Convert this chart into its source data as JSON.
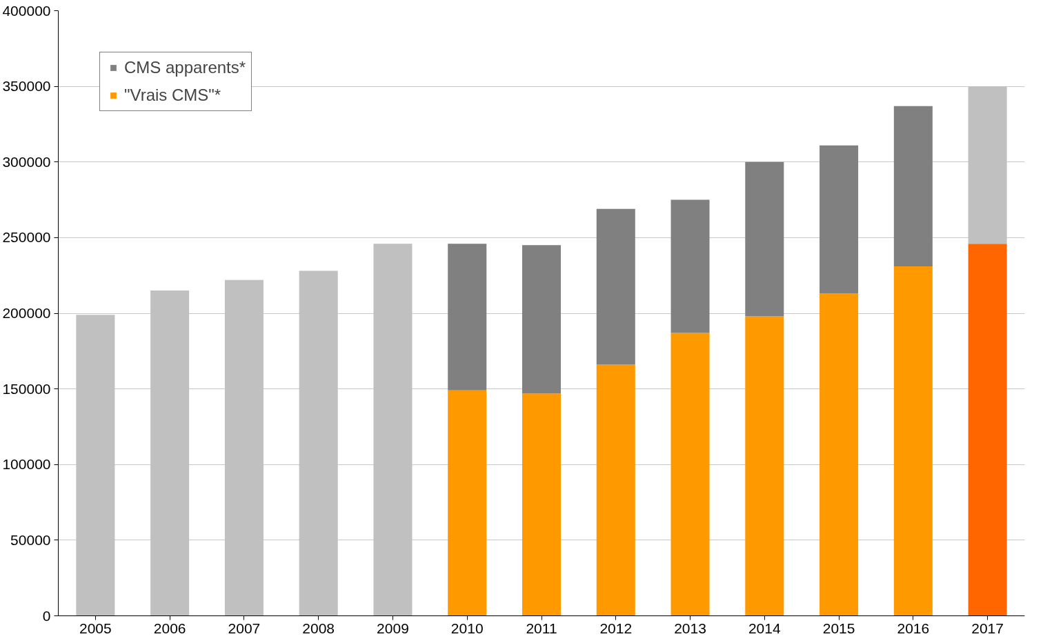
{
  "chart_data": {
    "type": "bar",
    "stacked": true,
    "categories": [
      "2005",
      "2006",
      "2007",
      "2008",
      "2009",
      "2010",
      "2011",
      "2012",
      "2013",
      "2014",
      "2015",
      "2016",
      "2017"
    ],
    "series": [
      {
        "name": "\"Vrais CMS\"*",
        "color": "#ff9900",
        "colors": [
          "#ff9900",
          "#ff9900",
          "#ff9900",
          "#ff9900",
          "#ff9900",
          "#ff9900",
          "#ff9900",
          "#ff9900",
          "#ff9900",
          "#ff9900",
          "#ff9900",
          "#ff9900",
          "#ff6600"
        ],
        "values": [
          null,
          null,
          null,
          null,
          null,
          149000,
          147000,
          166000,
          187000,
          198000,
          213000,
          231000,
          246000
        ]
      },
      {
        "name": "CMS apparents*",
        "color": "#808080",
        "colors": [
          "#808080",
          "#808080",
          "#808080",
          "#808080",
          "#808080",
          "#808080",
          "#808080",
          "#808080",
          "#808080",
          "#808080",
          "#808080",
          "#808080",
          "#c0c0c0"
        ],
        "values": [
          null,
          null,
          null,
          null,
          null,
          97000,
          98000,
          103000,
          88000,
          102000,
          98000,
          106000,
          104000
        ]
      },
      {
        "color": "#c0c0c0",
        "values": [
          199000,
          215000,
          222000,
          228000,
          246000,
          null,
          null,
          null,
          null,
          null,
          null,
          null,
          null
        ]
      }
    ],
    "ylim": [
      0,
      400000
    ],
    "yticks": [
      0,
      50000,
      100000,
      150000,
      200000,
      250000,
      300000,
      350000,
      400000
    ],
    "grid": "y",
    "legend": "top left"
  }
}
